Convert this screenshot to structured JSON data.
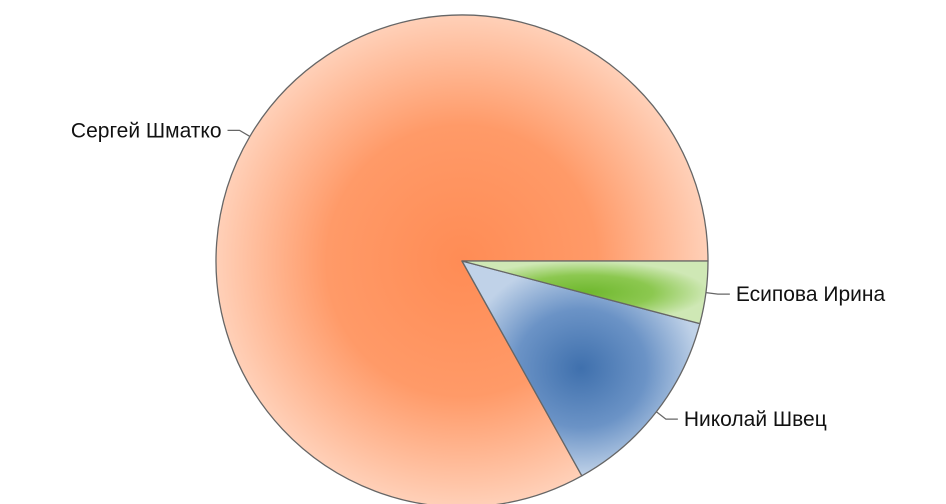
{
  "chart_data": {
    "type": "pie",
    "title": "",
    "series": [
      {
        "labels": [
          "Сергей Шматко",
          "Николай Швец",
          "Есипова Ирина"
        ],
        "values": [
          83.1,
          12.8,
          4.1
        ]
      }
    ],
    "colors": [
      "#ff8c55",
      "#5585bd",
      "#8cc850"
    ],
    "start": "3 o'clock",
    "direction": "counter-clockwise",
    "legend": "none",
    "labels_outside": true
  }
}
